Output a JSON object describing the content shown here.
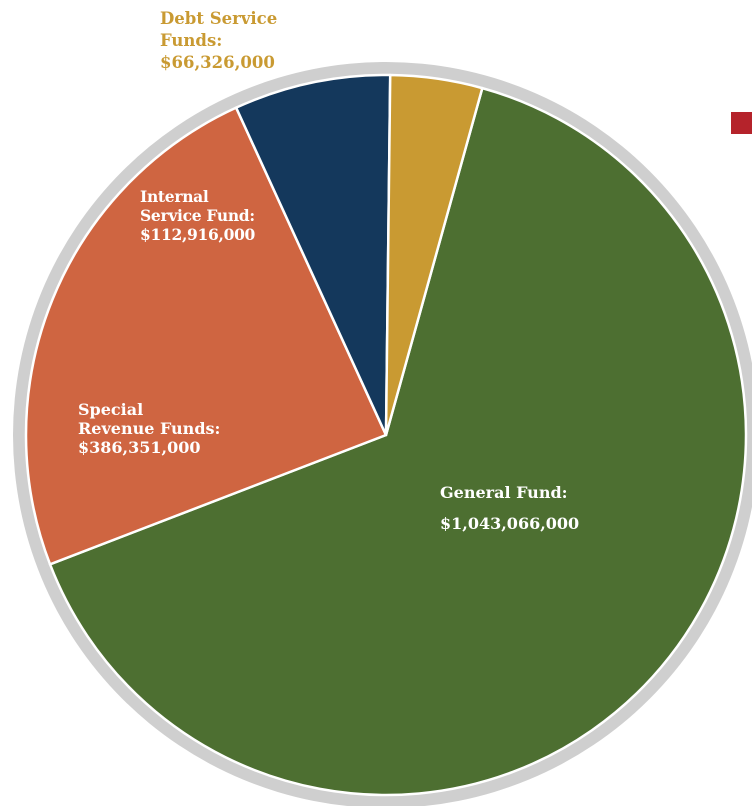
{
  "chart_data": {
    "type": "pie",
    "slices": [
      {
        "label_lines": [
          "General Fund:",
          "$1,043,066,000"
        ],
        "value": 1043066000,
        "color": "#4d6f31"
      },
      {
        "label_lines": [
          "Special",
          "Revenue Funds:",
          "$386,351,000"
        ],
        "value": 386351000,
        "color": "#cf6541"
      },
      {
        "label_lines": [
          "Internal",
          "Service Fund:",
          "$112,916,000"
        ],
        "value": 112916000,
        "color": "#14385c"
      },
      {
        "label_lines": [
          "Debt Service",
          "Funds:",
          "$66,326,000"
        ],
        "value": 66326000,
        "color": "#c99a32"
      }
    ]
  },
  "colors": {
    "ring": "#cfcfcf",
    "slice_border": "#ffffff",
    "debt_label_text": "#c99a32",
    "accent": "#b5232b"
  }
}
